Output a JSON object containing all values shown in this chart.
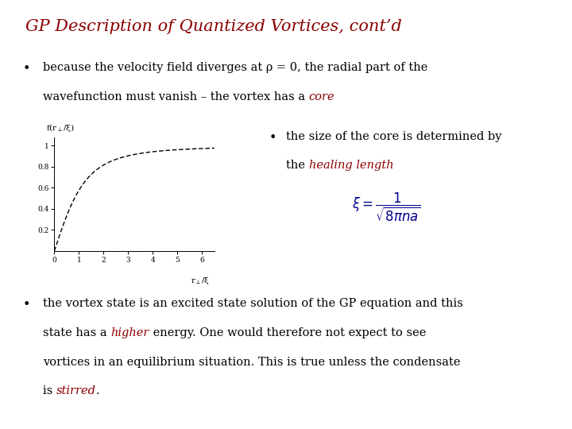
{
  "title": "GP Description of Quantized Vortices, cont’d",
  "title_color": "#8B0000",
  "title_fontsize": 15,
  "bg_color": "#FFFFFF",
  "bullet1_line1": "because the velocity field diverges at ρ = 0, the radial part of the",
  "bullet1_line2": "wavefunction must vanish – the vortex has a ",
  "bullet1_core": "core",
  "subbullet_line1": "the size of the core is determined by",
  "subbullet_line2": "the ",
  "subbullet_hl": "healing length",
  "bullet2_line1": "the vortex state is an excited state solution of the GP equation and this",
  "bullet2_line2": "state has a ",
  "bullet2_hl": "higher",
  "bullet2_line3": " energy. One would therefore not expect to see",
  "bullet2_line4": "vortices in an equilibrium situation. This is true unless the condensate",
  "bullet2_line5": "is ",
  "bullet2_hl2": "stirred",
  "bullet2_end": ".",
  "dark_red": "#8B0000",
  "dark_blue": "#00008B",
  "black": "#000000",
  "graph_ylabel_text": "f(r",
  "graph_ylabel_sub": "⊥",
  "graph_ylabel_end": "/ξ)",
  "graph_xlabel_text": "r",
  "graph_xlabel_sub": "⊥",
  "graph_xlabel_end": "/ξ",
  "graph_ytick_labels": [
    "0.2",
    "0.4",
    "0.6",
    "0.8",
    "1"
  ],
  "graph_yticks": [
    0.2,
    0.4,
    0.6,
    0.8,
    1.0
  ],
  "graph_xticks": [
    0,
    1,
    2,
    3,
    4,
    5,
    6
  ]
}
